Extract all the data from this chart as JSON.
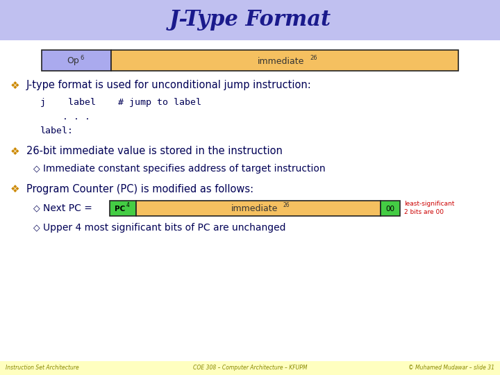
{
  "title": "J-Type Format",
  "title_color": "#1a1a8c",
  "title_bg": "#c0c0f0",
  "slide_bg": "#ffffff",
  "footer_bg": "#ffffc0",
  "footer_texts": [
    "Instruction Set Architecture",
    "COE 308 – Computer Architecture – KFUPM",
    "© Muhamed Mudawar – slide 31"
  ],
  "op_label": "Op",
  "op_superscript": "6",
  "imm_label": "immediate",
  "imm_superscript": "26",
  "op_color": "#aaaaee",
  "imm_color": "#f5c060",
  "box_outline": "#222222",
  "bullet_color": "#cc8800",
  "dark_blue": "#000055",
  "pc_color": "#44cc44",
  "pc_label": "PC",
  "pc_superscript": "4",
  "zero_label": "00",
  "zero_color": "#bbbbbb",
  "red_color": "#cc0000",
  "bullet1": "J-type format is used for unconditional jump instruction:",
  "code_line1": "j    label    # jump to label",
  "code_line2": "    . . .",
  "code_line3": "label:",
  "bullet2": "26-bit immediate value is stored in the instruction",
  "sub_bullet2": "Immediate constant specifies address of target instruction",
  "bullet3": "Program Counter (PC) is modified as follows:",
  "sub_bullet3a": "Next PC = ",
  "sub_bullet3b": "Upper 4 most significant bits of PC are unchanged",
  "note_line1": "least-significant",
  "note_line2": "2 bits are 00"
}
